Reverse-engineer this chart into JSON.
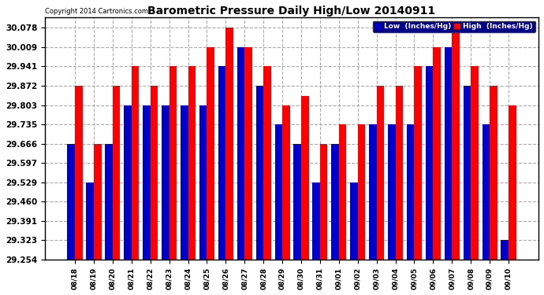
{
  "title": "Barometric Pressure Daily High/Low 20140911",
  "copyright": "Copyright 2014 Cartronics.com",
  "legend_low": "Low  (Inches/Hg)",
  "legend_high": "High  (Inches/Hg)",
  "color_low": "#0000cc",
  "color_high": "#ff0000",
  "background_color": "#ffffff",
  "yticks": [
    29.254,
    29.323,
    29.391,
    29.46,
    29.529,
    29.597,
    29.666,
    29.735,
    29.803,
    29.872,
    29.941,
    30.009,
    30.078
  ],
  "ylim_min": 29.254,
  "ylim_max": 30.115,
  "dates": [
    "08/18",
    "08/19",
    "08/20",
    "08/21",
    "08/22",
    "08/23",
    "08/24",
    "08/25",
    "08/26",
    "08/27",
    "08/28",
    "08/29",
    "08/30",
    "08/31",
    "09/01",
    "09/02",
    "09/03",
    "09/04",
    "09/05",
    "09/06",
    "09/07",
    "09/08",
    "09/09",
    "09/10"
  ],
  "high_values": [
    29.872,
    29.666,
    29.872,
    29.941,
    29.872,
    29.941,
    29.941,
    30.009,
    30.078,
    30.009,
    29.941,
    29.803,
    29.835,
    29.666,
    29.735,
    29.735,
    29.872,
    29.872,
    29.941,
    30.009,
    30.078,
    29.941,
    29.872,
    29.803
  ],
  "low_values": [
    29.666,
    29.529,
    29.666,
    29.803,
    29.803,
    29.803,
    29.803,
    29.803,
    29.941,
    30.009,
    29.872,
    29.735,
    29.666,
    29.529,
    29.666,
    29.529,
    29.735,
    29.735,
    29.735,
    29.941,
    30.009,
    29.872,
    29.735,
    29.323
  ]
}
